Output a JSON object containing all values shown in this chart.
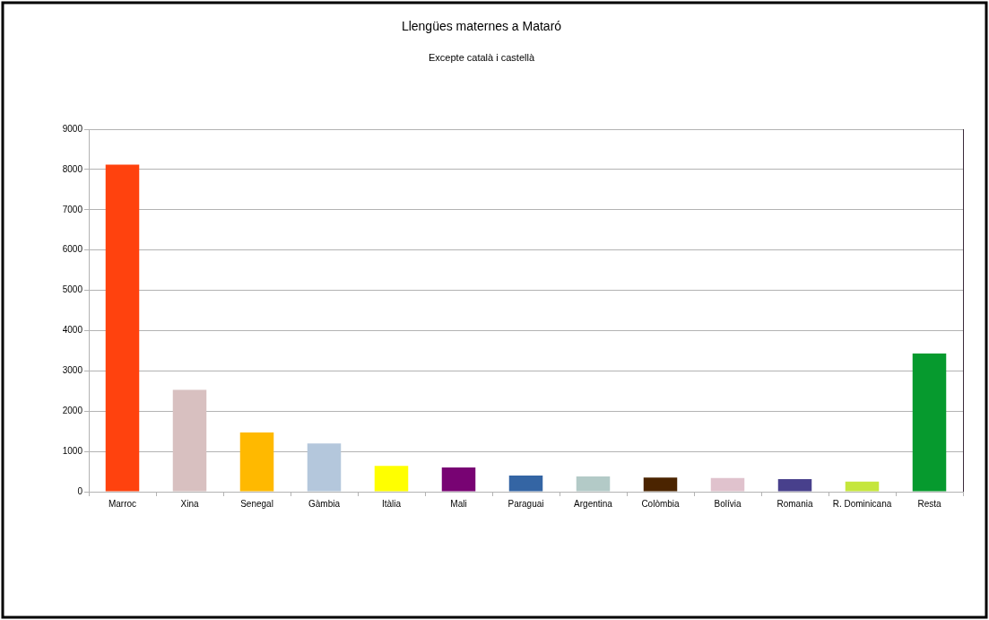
{
  "chart_data": {
    "type": "bar",
    "title": "Llengües maternes a Mataró",
    "subtitle": "Excepte català i castellà",
    "categories": [
      "Marroc",
      "Xina",
      "Senegal",
      "Gàmbia",
      "Itàlia",
      "Mali",
      "Paraguai",
      "Argentina",
      "Colòmbia",
      "Bolívia",
      "Romania",
      "R. Dominicana",
      "Resta"
    ],
    "values": [
      8120,
      2530,
      1470,
      1200,
      640,
      600,
      400,
      380,
      350,
      340,
      310,
      250,
      3430
    ],
    "colors": [
      "#ff420e",
      "#d8c0c0",
      "#ffb900",
      "#b4c7dc",
      "#ffff00",
      "#780373",
      "#3465a4",
      "#b3cac7",
      "#4b2400",
      "#e0c2cd",
      "#48408c",
      "#c5e63c",
      "#069a2e"
    ],
    "ylim": [
      0,
      9000
    ],
    "yticks": [
      0,
      1000,
      2000,
      3000,
      4000,
      5000,
      6000,
      7000,
      8000,
      9000
    ],
    "grid": "y"
  }
}
